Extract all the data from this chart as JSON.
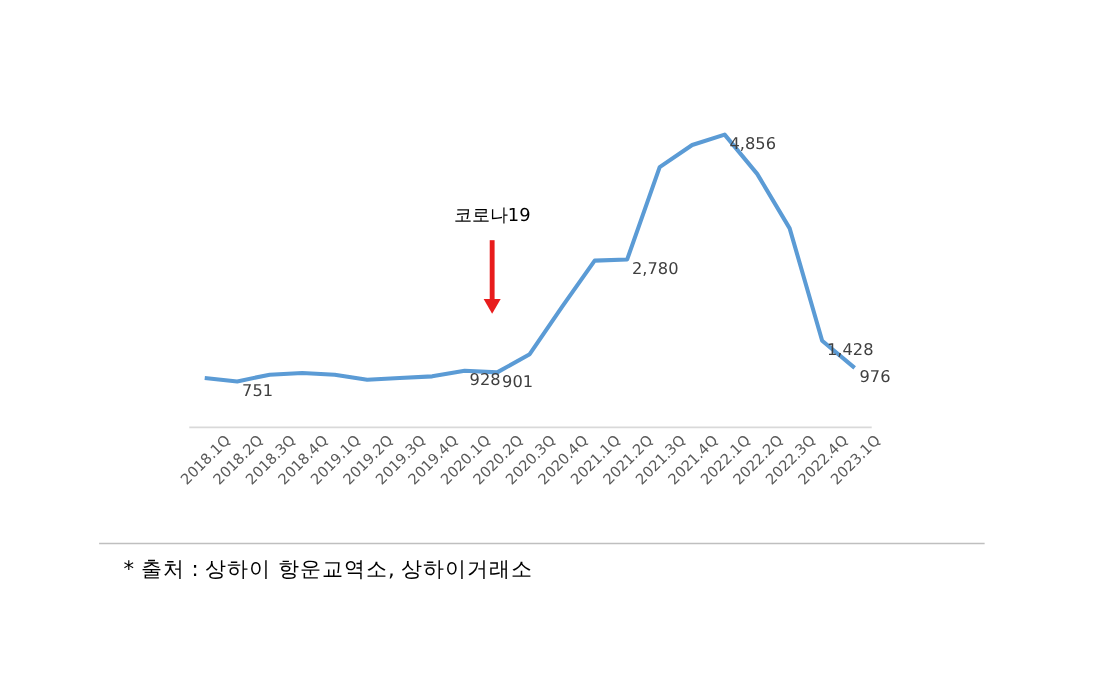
{
  "chart_data": {
    "type": "line",
    "categories": [
      "2018.1Q",
      "2018.2Q",
      "2018.3Q",
      "2018.4Q",
      "2019.1Q",
      "2019.2Q",
      "2019.3Q",
      "2019.4Q",
      "2020.1Q",
      "2020.2Q",
      "2020.3Q",
      "2020.4Q",
      "2021.1Q",
      "2021.2Q",
      "2021.3Q",
      "2021.4Q",
      "2022.1Q",
      "2022.2Q",
      "2022.3Q",
      "2022.4Q",
      "2023.1Q"
    ],
    "series": [
      {
        "color": "#5b9bd5",
        "values": [
          807,
          751,
          863,
          891,
          863,
          778,
          807,
          835,
          928,
          901,
          1203,
          1995,
          2760,
          2780,
          4316,
          4683,
          4856,
          4203,
          3297,
          1428,
          976
        ],
        "value_labels": [
          null,
          "751",
          null,
          null,
          null,
          null,
          null,
          null,
          "928",
          "901",
          null,
          null,
          null,
          "2,780",
          null,
          null,
          "4,856",
          null,
          null,
          "1,428",
          "976"
        ]
      }
    ],
    "annotations": [
      "코로나19",
      "* 출처 : 상하이 항운교역소, 상하이거래소"
    ],
    "grid": false,
    "marker": "none",
    "line_style": "solid"
  }
}
